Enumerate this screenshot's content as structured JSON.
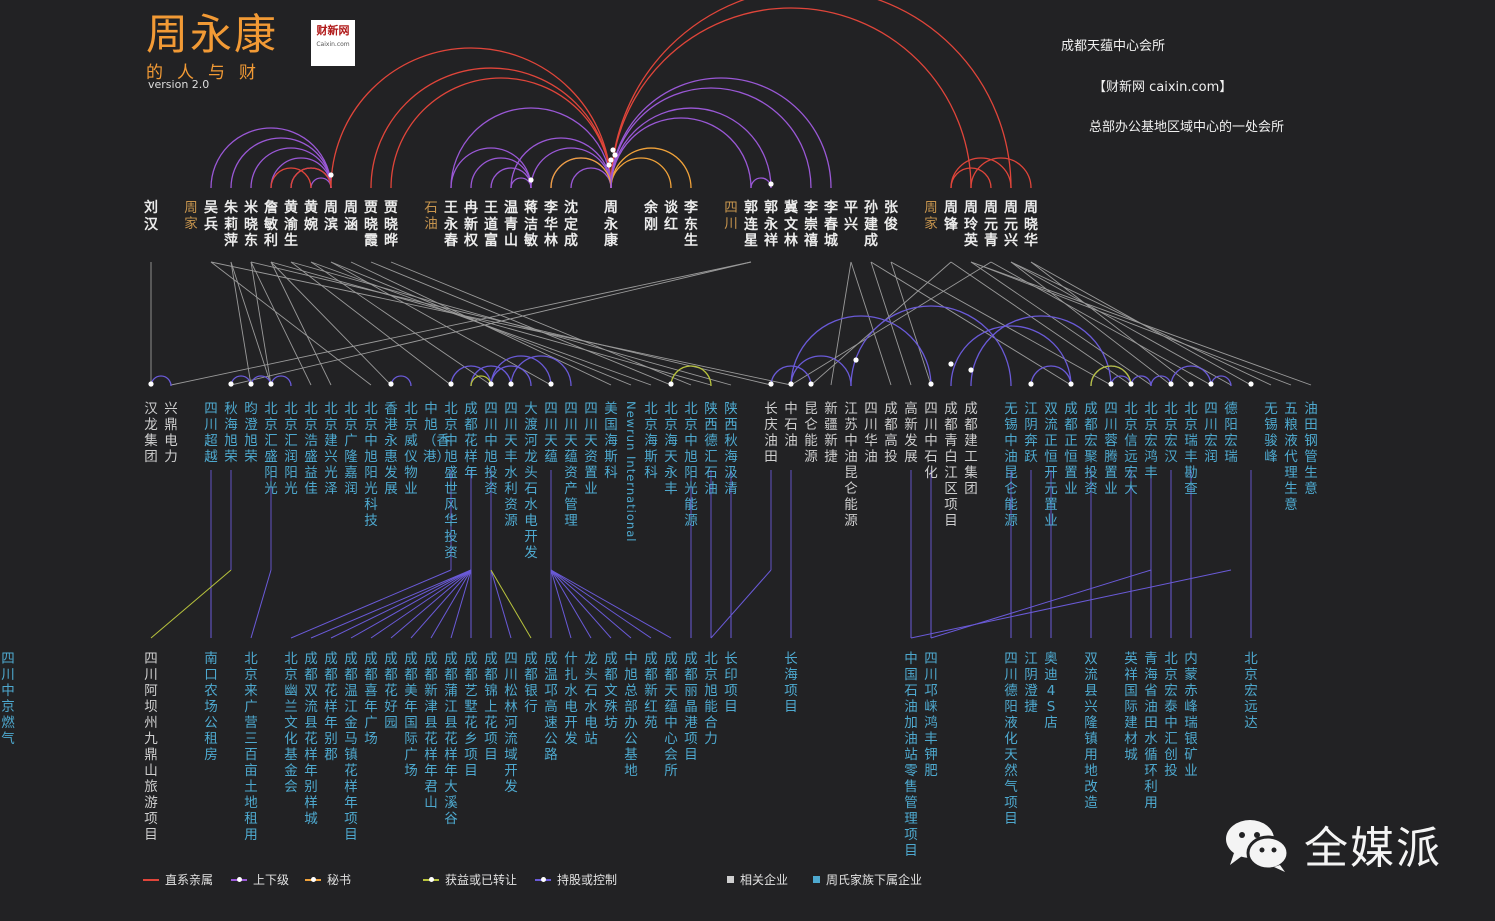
{
  "title": "周永康",
  "subtitle": "的人与财",
  "version": "version 2.0",
  "logo": {
    "main": "财新网",
    "sub": "Caixin.com"
  },
  "info": {
    "line1": "成都天蕴中心会所",
    "line2": "【财新网 caixin.com】",
    "line3": "总部办公基地区域中心的一处会所"
  },
  "colors": {
    "direct": "#e0453a",
    "subordinate": "#9a58d6",
    "secretary": "#f0a23a",
    "transferred": "#b8c33c",
    "control": "#6a5ad8",
    "related": "#cfcfcf",
    "family_company": "#4ea9cf",
    "group": "#c7954e"
  },
  "people": [
    {
      "name": "刘汉",
      "style": "white"
    },
    {
      "name": "周家",
      "style": "orange"
    },
    {
      "name": "吴兵",
      "style": "white"
    },
    {
      "name": "朱莉萍",
      "style": "white"
    },
    {
      "name": "米晓东",
      "style": "white"
    },
    {
      "name": "詹敏利",
      "style": "white"
    },
    {
      "name": "黄渝生",
      "style": "white"
    },
    {
      "name": "黄婉",
      "style": "white"
    },
    {
      "name": "周滨",
      "style": "white"
    },
    {
      "name": "周涵",
      "style": "white"
    },
    {
      "name": "贾晓霞",
      "style": "white"
    },
    {
      "name": "贾晓晔",
      "style": "white"
    },
    {
      "name": "石油",
      "style": "orange"
    },
    {
      "name": "王永春",
      "style": "white"
    },
    {
      "name": "冉新权",
      "style": "white"
    },
    {
      "name": "王道富",
      "style": "white"
    },
    {
      "name": "温青山",
      "style": "white"
    },
    {
      "name": "蒋洁敏",
      "style": "white"
    },
    {
      "name": "李华林",
      "style": "white"
    },
    {
      "name": "沈定成",
      "style": "white"
    },
    {
      "name": "周永康",
      "style": "white"
    },
    {
      "name": "余刚",
      "style": "white"
    },
    {
      "name": "谈红",
      "style": "white"
    },
    {
      "name": "李东生",
      "style": "white"
    },
    {
      "name": "四川",
      "style": "orange"
    },
    {
      "name": "郭连星",
      "style": "white"
    },
    {
      "name": "郭永祥",
      "style": "white"
    },
    {
      "name": "冀文林",
      "style": "white"
    },
    {
      "name": "李崇禧",
      "style": "white"
    },
    {
      "name": "李春城",
      "style": "white"
    },
    {
      "name": "平兴",
      "style": "white"
    },
    {
      "name": "孙建成",
      "style": "white"
    },
    {
      "name": "张俊",
      "style": "white"
    },
    {
      "name": "周家",
      "style": "orange"
    },
    {
      "name": "周锋",
      "style": "white"
    },
    {
      "name": "周玲英",
      "style": "white"
    },
    {
      "name": "周元青",
      "style": "white"
    },
    {
      "name": "周元兴",
      "style": "white"
    },
    {
      "name": "周晓华",
      "style": "white"
    }
  ],
  "companies_mid": [
    {
      "name": "汉龙集团",
      "style": "gray"
    },
    {
      "name": "兴鼎电力",
      "style": "gray"
    },
    {
      "name": "四川超越",
      "style": "blue"
    },
    {
      "name": "秋海旭荣",
      "style": "blue"
    },
    {
      "name": "昀澄旭荣",
      "style": "blue"
    },
    {
      "name": "北京汇盛阳光",
      "style": "blue"
    },
    {
      "name": "北京汇润阳光",
      "style": "blue"
    },
    {
      "name": "北京浩盛益佳",
      "style": "blue"
    },
    {
      "name": "北京建兴光泽",
      "style": "blue"
    },
    {
      "name": "北京广隆嘉润",
      "style": "blue"
    },
    {
      "name": "北京中旭阳光科技",
      "style": "blue"
    },
    {
      "name": "香港永惠发展",
      "style": "blue"
    },
    {
      "name": "北京威仪物业",
      "style": "blue"
    },
    {
      "name": "中旭（香港）",
      "style": "blue"
    },
    {
      "name": "北京中旭盛世风华投资",
      "style": "blue"
    },
    {
      "name": "成都花样年",
      "style": "blue"
    },
    {
      "name": "四川中旭投资",
      "style": "blue"
    },
    {
      "name": "四川天丰水利资源",
      "style": "blue"
    },
    {
      "name": "大渡河龙头石水电开发",
      "style": "blue"
    },
    {
      "name": "四川天蕴",
      "style": "blue"
    },
    {
      "name": "四川天蕴资产管理",
      "style": "blue"
    },
    {
      "name": "四川天资置业",
      "style": "blue"
    },
    {
      "name": "美国海斯科",
      "style": "blue"
    },
    {
      "name": "Newrun International",
      "style": "blue",
      "rotated": true
    },
    {
      "name": "北京海斯科",
      "style": "blue"
    },
    {
      "name": "北京海天永丰",
      "style": "blue"
    },
    {
      "name": "北京中旭阳光能源",
      "style": "blue"
    },
    {
      "name": "陕西德汇石油",
      "style": "blue"
    },
    {
      "name": "陕西秋海汲清",
      "style": "blue"
    },
    {
      "name": "长庆油田",
      "style": "gray"
    },
    {
      "name": "中石油",
      "style": "gray"
    },
    {
      "name": "昆仑能源",
      "style": "gray"
    },
    {
      "name": "新疆新捷",
      "style": "gray"
    },
    {
      "name": "江苏中油昆仑能源",
      "style": "gray"
    },
    {
      "name": "四川华油",
      "style": "gray"
    },
    {
      "name": "成都高投",
      "style": "gray"
    },
    {
      "name": "高新发展",
      "style": "gray"
    },
    {
      "name": "四川中石化",
      "style": "gray"
    },
    {
      "name": "成都青白江区项目",
      "style": "gray"
    },
    {
      "name": "成都建工集团",
      "style": "gray"
    },
    {
      "name": "无锡中油昆仑能源",
      "style": "blue"
    },
    {
      "name": "江阴奔跃",
      "style": "blue"
    },
    {
      "name": "双流正恒开元置业",
      "style": "blue"
    },
    {
      "name": "成都正恒置业",
      "style": "blue"
    },
    {
      "name": "成都宏聚投资",
      "style": "blue"
    },
    {
      "name": "四川蓉腾置业",
      "style": "blue"
    },
    {
      "name": "北京信远宏大",
      "style": "blue"
    },
    {
      "name": "北京宏鸿丰",
      "style": "blue"
    },
    {
      "name": "北京宏汉",
      "style": "blue"
    },
    {
      "name": "北京瑞丰勘查",
      "style": "blue"
    },
    {
      "name": "四川宏润",
      "style": "blue"
    },
    {
      "name": "德阳宏瑞",
      "style": "blue"
    },
    {
      "name": "无锡骏峰",
      "style": "blue"
    },
    {
      "name": "五粮液代理生意",
      "style": "blue"
    },
    {
      "name": "油田钢管生意",
      "style": "blue"
    }
  ],
  "projects": [
    {
      "name": "四川阿坝州九鼎山旅游项目",
      "style": "gray"
    },
    {
      "name": "南口农场公租房",
      "style": "blue"
    },
    {
      "name": "北京来广营三百亩土地租用",
      "style": "blue"
    },
    {
      "name": "北京幽兰文化基金会",
      "style": "blue"
    },
    {
      "name": "成都双流县花样年别样城",
      "style": "blue"
    },
    {
      "name": "成都花样年别郡",
      "style": "blue"
    },
    {
      "name": "成都温江金马镇花样年项目",
      "style": "blue"
    },
    {
      "name": "成都喜年广场",
      "style": "blue"
    },
    {
      "name": "成都花好园",
      "style": "blue"
    },
    {
      "name": "成都美年国际广场",
      "style": "blue"
    },
    {
      "name": "成都新津县花样年君山",
      "style": "blue"
    },
    {
      "name": "成都蒲江县花样年大溪谷",
      "style": "blue"
    },
    {
      "name": "成都艺墅花乡项目",
      "style": "blue"
    },
    {
      "name": "成都锦上花项目",
      "style": "blue"
    },
    {
      "name": "四川松林河流域开发",
      "style": "blue"
    },
    {
      "name": "成都银行",
      "style": "blue"
    },
    {
      "name": "成温邛高速公路",
      "style": "blue"
    },
    {
      "name": "什扎水电开发",
      "style": "blue"
    },
    {
      "name": "龙头石水电站",
      "style": "blue"
    },
    {
      "name": "成都文殊坊",
      "style": "blue"
    },
    {
      "name": "中旭总部办公基地",
      "style": "blue"
    },
    {
      "name": "成都新红苑",
      "style": "blue"
    },
    {
      "name": "成都天蕴中心会所",
      "style": "blue"
    },
    {
      "name": "成都丽晶港项目",
      "style": "blue"
    },
    {
      "name": "北京旭能合力",
      "style": "blue"
    },
    {
      "name": "长印项目",
      "style": "blue"
    },
    {
      "name": "长海项目",
      "style": "blue"
    },
    {
      "name": "中国石油加油站零售管理项目",
      "style": "blue"
    },
    {
      "name": "四川邛崃鸿丰钾肥",
      "style": "blue"
    },
    {
      "name": "四川德阳液化天然气项目",
      "style": "blue"
    },
    {
      "name": "江阴澄捷",
      "style": "blue"
    },
    {
      "name": "奥迪4S店",
      "style": "blue"
    },
    {
      "name": "双流县兴隆镇用地改造",
      "style": "blue"
    },
    {
      "name": "英祥国际建材城",
      "style": "blue"
    },
    {
      "name": "青海省油田水循环利用",
      "style": "blue"
    },
    {
      "name": "北京宏泰中汇创投",
      "style": "blue"
    },
    {
      "name": "内蒙赤峰瑞银矿业",
      "style": "blue"
    },
    {
      "name": "北京宏远达",
      "style": "blue"
    },
    {
      "name": "四川中京燃气",
      "style": "blue"
    }
  ],
  "legend": [
    {
      "label": "直系亲属",
      "color": "#e0453a",
      "kind": "line"
    },
    {
      "label": "上下级",
      "color": "#9a58d6",
      "kind": "line"
    },
    {
      "label": "秘书",
      "color": "#f0a23a",
      "kind": "line"
    },
    {
      "label": "获益或已转让",
      "color": "#b8c33c",
      "kind": "line"
    },
    {
      "label": "持股或控制",
      "color": "#6a5ad8",
      "kind": "line"
    },
    {
      "label": "相关企业",
      "color": "#cfcfcf",
      "kind": "square"
    },
    {
      "label": "周氏家族下属企业",
      "color": "#4ea9cf",
      "kind": "square"
    }
  ],
  "brand": "全媒派"
}
